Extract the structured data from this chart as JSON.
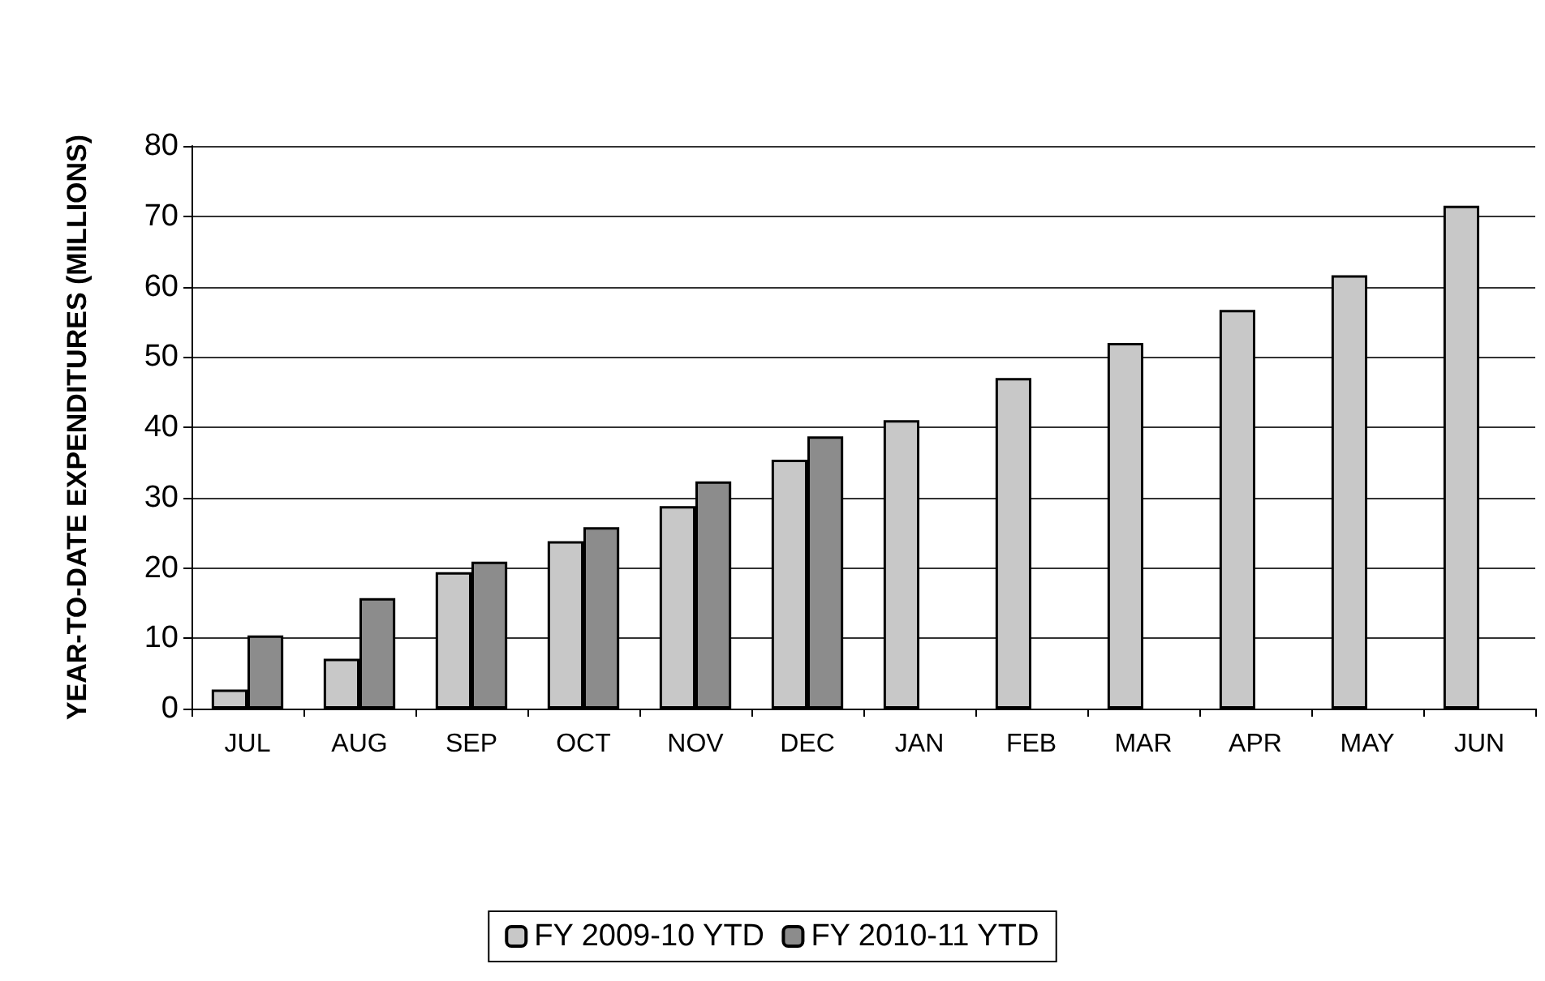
{
  "chart_data": {
    "type": "bar",
    "ylabel": "YEAR-TO-DATE EXPENDITURES (MILLIONS)",
    "categories": [
      "JUL",
      "AUG",
      "SEP",
      "OCT",
      "NOV",
      "DEC",
      "JAN",
      "FEB",
      "MAR",
      "APR",
      "MAY",
      "JUN"
    ],
    "series": [
      {
        "name": "FY 2009-10 YTD",
        "color": "#c8c8c8",
        "values": [
          2.7,
          7.1,
          19.4,
          23.8,
          28.8,
          35.4,
          41.0,
          47.0,
          52.0,
          56.7,
          61.6,
          71.5
        ]
      },
      {
        "name": "FY 2010-11 YTD",
        "color": "#8c8c8c",
        "values": [
          10.4,
          15.7,
          20.9,
          25.8,
          32.3,
          38.7,
          null,
          null,
          null,
          null,
          null,
          null
        ]
      }
    ],
    "ylim": [
      0,
      80
    ],
    "yticks": [
      0,
      10,
      20,
      30,
      40,
      50,
      60,
      70,
      80
    ],
    "grid": "y",
    "legend": "bottom"
  }
}
